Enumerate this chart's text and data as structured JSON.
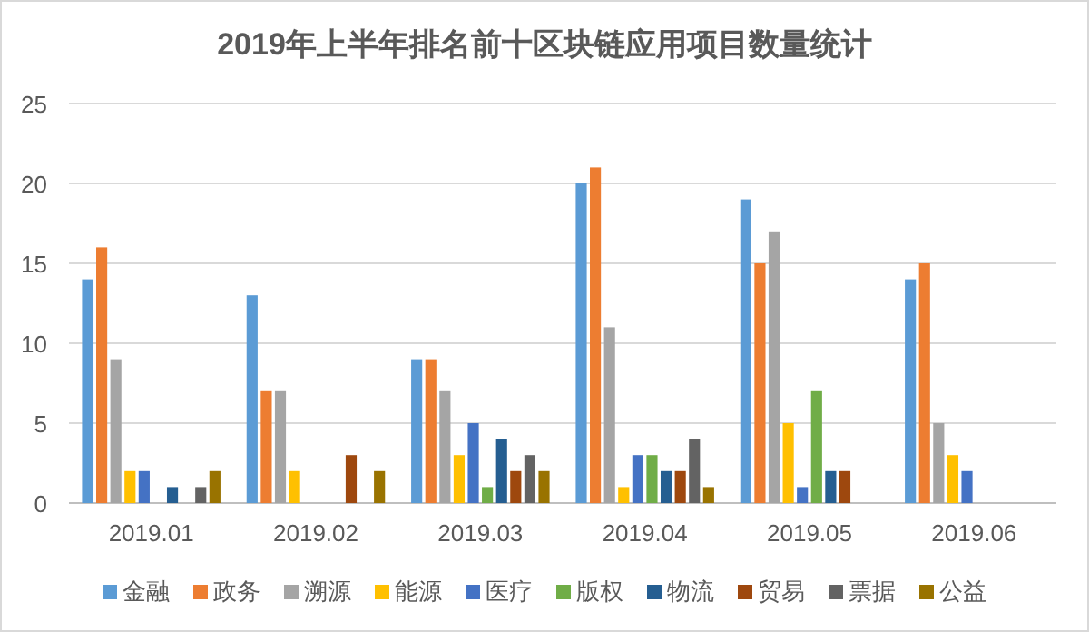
{
  "chart_data": {
    "type": "bar",
    "title": "2019年上半年排名前十区块链应用项目数量统计",
    "categories": [
      "2019.01",
      "2019.02",
      "2019.03",
      "2019.04",
      "2019.05",
      "2019.06"
    ],
    "series": [
      {
        "name": "金融",
        "color": "#5b9bd5",
        "values": [
          14,
          13,
          9,
          20,
          19,
          14
        ]
      },
      {
        "name": "政务",
        "color": "#ed7d31",
        "values": [
          16,
          7,
          9,
          21,
          15,
          15
        ]
      },
      {
        "name": "溯源",
        "color": "#a5a5a5",
        "values": [
          9,
          7,
          7,
          11,
          17,
          5
        ]
      },
      {
        "name": "能源",
        "color": "#ffc000",
        "values": [
          2,
          2,
          3,
          1,
          5,
          3
        ]
      },
      {
        "name": "医疗",
        "color": "#4472c4",
        "values": [
          2,
          0,
          5,
          3,
          1,
          2
        ]
      },
      {
        "name": "版权",
        "color": "#70ad47",
        "values": [
          0,
          0,
          1,
          3,
          7,
          0
        ]
      },
      {
        "name": "物流",
        "color": "#255e91",
        "values": [
          1,
          0,
          4,
          2,
          2,
          0
        ]
      },
      {
        "name": "贸易",
        "color": "#9e480e",
        "values": [
          0,
          3,
          2,
          2,
          2,
          0
        ]
      },
      {
        "name": "票据",
        "color": "#636363",
        "values": [
          1,
          0,
          3,
          4,
          0,
          0
        ]
      },
      {
        "name": "公益",
        "color": "#997300",
        "values": [
          2,
          2,
          2,
          1,
          0,
          0
        ]
      }
    ],
    "ylim": [
      0,
      25
    ],
    "yticks": [
      0,
      5,
      10,
      15,
      20,
      25
    ],
    "grid": "y",
    "legend": "bottom"
  }
}
